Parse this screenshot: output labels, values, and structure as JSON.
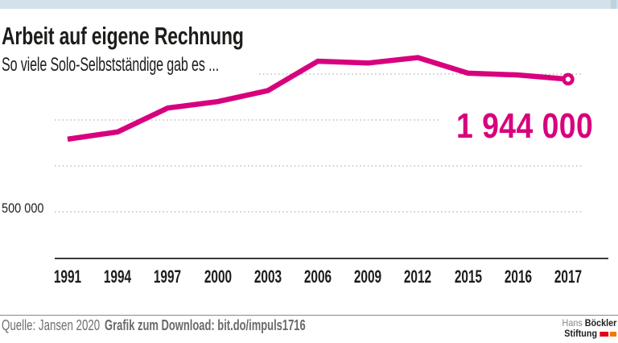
{
  "header": {
    "title": "Arbeit auf eigene Rechnung",
    "subtitle": "So viele Solo-Selbstständige gab es ..."
  },
  "chart_data": {
    "type": "line",
    "title": "Arbeit auf eigene Rechnung",
    "subtitle": "So viele Solo-Selbstständige gab es ...",
    "categories": [
      "1991",
      "1994",
      "1997",
      "2000",
      "2003",
      "2006",
      "2009",
      "2012",
      "2015",
      "2016",
      "2017"
    ],
    "series": [
      {
        "name": "Solo-Selbstständige",
        "values": [
          1290000,
          1370000,
          1630000,
          1700000,
          1820000,
          2140000,
          2120000,
          2180000,
          2010000,
          1990000,
          1944000
        ]
      }
    ],
    "annotation": "1 944 000",
    "annotation_value": 1944000,
    "last_point_marker": "open-circle",
    "ytick_label": "500 000",
    "gridline_values": [
      500000,
      1000000,
      1500000,
      2000000
    ],
    "ylim": [
      0,
      2300000
    ],
    "xlabel": "",
    "ylabel": "",
    "grid": "dotted-horizontal",
    "legend": "none",
    "line_color": "#d8017d"
  },
  "colors": {
    "accent_bar": "#d3e2ea",
    "line": "#d8017d",
    "grid": "#b4b4ac",
    "axis": "#3c3c3c",
    "logo_red": "#e2001a",
    "logo_orange": "#ef7c00"
  },
  "footer": {
    "source": "Quelle: Jansen 2020",
    "download": "Grafik zum Download: bit.do/impuls1716"
  },
  "logo": {
    "line1_light": "Hans",
    "line1_bold": "Böckler",
    "line2_bold": "Stiftung"
  }
}
